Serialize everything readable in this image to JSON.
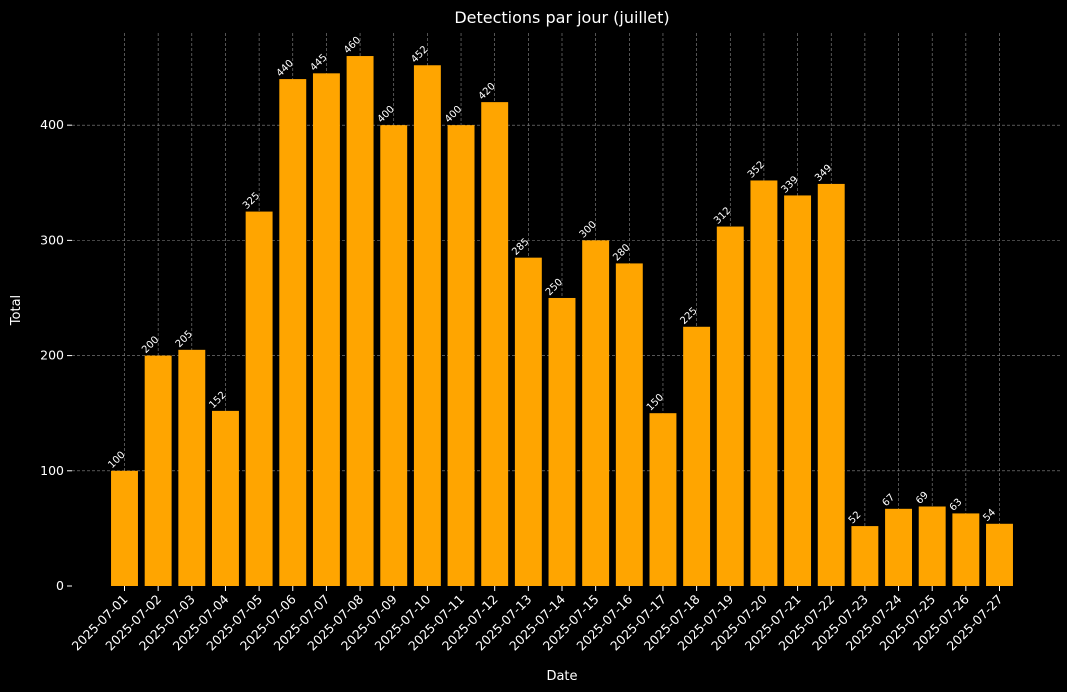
{
  "chart_data": {
    "type": "bar",
    "title": "Detections par jour (juillet)",
    "xlabel": "Date",
    "ylabel": "Total",
    "ylim": [
      0,
      480
    ],
    "yticks": [
      0,
      100,
      200,
      300,
      400
    ],
    "grid": true,
    "bar_color": "#FFA500",
    "background_color": "#000000",
    "text_color": "#FFFFFF",
    "categories": [
      "2025-07-01",
      "2025-07-02",
      "2025-07-03",
      "2025-07-04",
      "2025-07-05",
      "2025-07-06",
      "2025-07-07",
      "2025-07-08",
      "2025-07-09",
      "2025-07-10",
      "2025-07-11",
      "2025-07-12",
      "2025-07-13",
      "2025-07-14",
      "2025-07-15",
      "2025-07-16",
      "2025-07-17",
      "2025-07-18",
      "2025-07-19",
      "2025-07-20",
      "2025-07-21",
      "2025-07-22",
      "2025-07-23",
      "2025-07-24",
      "2025-07-25",
      "2025-07-26",
      "2025-07-27"
    ],
    "values": [
      100,
      200,
      205,
      152,
      325,
      440,
      445,
      460,
      400,
      452,
      400,
      420,
      285,
      250,
      300,
      280,
      150,
      225,
      312,
      352,
      339,
      349,
      52,
      67,
      69,
      63,
      54
    ]
  }
}
